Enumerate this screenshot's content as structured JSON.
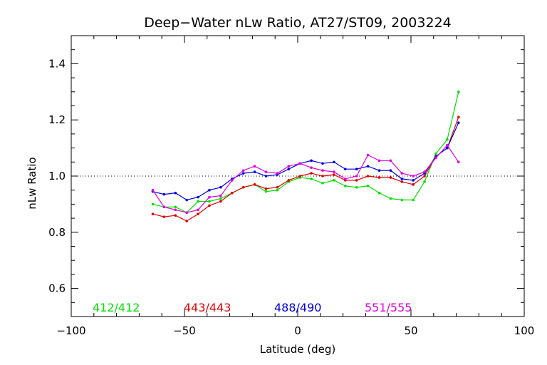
{
  "chart_data": {
    "type": "line",
    "title": "Deep−Water nLw Ratio, AT27/ST09, 2003224",
    "xlabel": "Latitude (deg)",
    "ylabel": "nLw Ratio",
    "xlim": [
      -100,
      100
    ],
    "ylim": [
      0.5,
      1.5
    ],
    "x_ticks": [
      -100,
      -50,
      0,
      50,
      100
    ],
    "y_ticks": [
      0.6,
      0.8,
      1.0,
      1.2,
      1.4
    ],
    "x_tick_labels": [
      "−100",
      "−50",
      "0",
      "50",
      "100"
    ],
    "y_tick_labels": [
      "0.6",
      "0.8",
      "1.0",
      "1.2",
      "1.4"
    ],
    "reference_line": {
      "y": 1.0,
      "style": "dotted"
    },
    "legend_position": "bottom, inside plot",
    "grid": false,
    "series": [
      {
        "name": "412/412",
        "color": "#00e000",
        "x": [
          -64,
          -59,
          -54,
          -49,
          -44,
          -39,
          -34,
          -29,
          -24,
          -19,
          -14,
          -9,
          -4,
          1,
          6,
          11,
          16,
          21,
          26,
          31,
          36,
          41,
          46,
          51,
          56,
          61,
          66,
          71
        ],
        "y": [
          0.9,
          0.89,
          0.89,
          0.87,
          0.91,
          0.91,
          0.92,
          0.94,
          0.96,
          0.97,
          0.945,
          0.95,
          0.98,
          0.995,
          0.99,
          0.975,
          0.985,
          0.965,
          0.96,
          0.965,
          0.94,
          0.92,
          0.915,
          0.915,
          0.98,
          1.08,
          1.13,
          1.3
        ]
      },
      {
        "name": "443/443",
        "color": "#e00000",
        "x": [
          -64,
          -59,
          -54,
          -49,
          -44,
          -39,
          -34,
          -29,
          -24,
          -19,
          -14,
          -9,
          -4,
          1,
          6,
          11,
          16,
          21,
          26,
          31,
          36,
          41,
          46,
          51,
          56,
          61,
          66,
          71
        ],
        "y": [
          0.865,
          0.855,
          0.86,
          0.84,
          0.865,
          0.895,
          0.91,
          0.94,
          0.96,
          0.97,
          0.955,
          0.96,
          0.985,
          1.0,
          1.01,
          1.0,
          1.005,
          0.985,
          0.985,
          1.0,
          0.995,
          0.995,
          0.98,
          0.97,
          1.0,
          1.07,
          1.1,
          1.21
        ]
      },
      {
        "name": "488/490",
        "color": "#0000e0",
        "x": [
          -64,
          -59,
          -54,
          -49,
          -44,
          -39,
          -34,
          -29,
          -24,
          -19,
          -14,
          -9,
          -4,
          1,
          6,
          11,
          16,
          21,
          26,
          31,
          36,
          41,
          46,
          51,
          56,
          61,
          66,
          71
        ],
        "y": [
          0.945,
          0.935,
          0.94,
          0.915,
          0.925,
          0.95,
          0.96,
          0.99,
          1.01,
          1.015,
          1.0,
          1.005,
          1.025,
          1.045,
          1.055,
          1.045,
          1.05,
          1.025,
          1.025,
          1.035,
          1.02,
          1.02,
          0.99,
          0.985,
          1.01,
          1.07,
          1.1,
          1.19
        ]
      },
      {
        "name": "551/555",
        "color": "#e000e0",
        "x": [
          -64,
          -59,
          -54,
          -49,
          -44,
          -39,
          -34,
          -29,
          -24,
          -19,
          -14,
          -9,
          -4,
          1,
          6,
          11,
          16,
          21,
          26,
          31,
          36,
          41,
          46,
          51,
          56,
          61,
          66,
          71
        ],
        "y": [
          0.95,
          0.89,
          0.88,
          0.87,
          0.88,
          0.925,
          0.93,
          0.985,
          1.02,
          1.035,
          1.015,
          1.01,
          1.035,
          1.045,
          1.03,
          1.02,
          1.015,
          0.99,
          1.0,
          1.075,
          1.055,
          1.055,
          1.01,
          1.0,
          1.015,
          1.065,
          1.11,
          1.05
        ]
      }
    ]
  }
}
